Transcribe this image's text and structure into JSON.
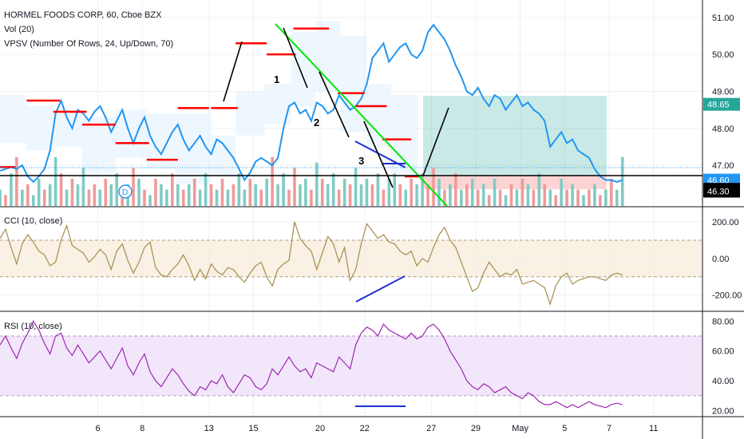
{
  "legend": {
    "symbol_line": "HORMEL FOODS CORP, 60, Cboe BZX",
    "vol_line": "Vol (20)",
    "vpsv_line": "VPSV (Number Of Rows, 24, Up/Down, 70)",
    "cci_line": "CCI (10, close)",
    "rsi_line": "RSI (10, close)"
  },
  "x_axis": {
    "labels": [
      {
        "x": 5,
        "label": "6"
      },
      {
        "x": 7,
        "label": "8"
      },
      {
        "x": 10,
        "label": "13"
      },
      {
        "x": 12,
        "label": "15"
      },
      {
        "x": 15,
        "label": "20"
      },
      {
        "x": 17,
        "label": "22"
      },
      {
        "x": 20,
        "label": "27"
      },
      {
        "x": 22,
        "label": "29"
      },
      {
        "x": 24,
        "label": "May"
      },
      {
        "x": 26,
        "label": "5"
      },
      {
        "x": 28,
        "label": "7"
      },
      {
        "x": 30,
        "label": "11"
      }
    ],
    "range": [
      0.6,
      32.2
    ]
  },
  "price_axis": {
    "ticks": [
      "51.00",
      "50.00",
      "49.00",
      "48.00",
      "47.00"
    ],
    "tick_values": [
      51,
      50,
      49,
      48,
      47
    ],
    "range": [
      45.9,
      51.3
    ],
    "tags": [
      {
        "value": 48.65,
        "label": "48.65",
        "color": "#26a69a"
      },
      {
        "value": 46.6,
        "label": "46.60",
        "color": "#2196f3"
      },
      {
        "value": 46.35,
        "label": "46.35",
        "color": "#000000"
      },
      {
        "value": 46.3,
        "label": "46.30",
        "color": "#000000"
      }
    ]
  },
  "cci_axis": {
    "ticks": [
      "200.00",
      "0.00",
      "-200.00"
    ],
    "tick_values": [
      200,
      0,
      -200
    ],
    "range": [
      -280,
      270
    ],
    "bands": [
      100,
      -100
    ]
  },
  "rsi_axis": {
    "ticks": [
      "80.00",
      "60.00",
      "40.00",
      "20.00"
    ],
    "tick_values": [
      80,
      60,
      40,
      20
    ],
    "range": [
      17,
      85
    ],
    "bands": [
      70,
      30
    ]
  },
  "waves": [
    "1",
    "2",
    "3"
  ],
  "colors": {
    "price": "#2196f3",
    "cci": "#a88c4a",
    "rsi": "#9c27b0",
    "up_vol": "#80cbc4",
    "down_vol": "#ef9a9a",
    "trend": "#00e600",
    "channel": "#1e2fd6",
    "poc": "#ff0000"
  },
  "chart_data": [
    {
      "type": "line",
      "title": "HORMEL FOODS CORP, 60, Cboe BZX",
      "series": [
        {
          "values_x_start": 0.6,
          "values_x_step": 0.25,
          "values": [
            46.85,
            46.9,
            46.95,
            46.9,
            47.0,
            46.7,
            46.55,
            46.7,
            46.9,
            47.4,
            48.4,
            48.75,
            48.3,
            48.0,
            48.5,
            48.4,
            48.2,
            48.45,
            48.6,
            48.3,
            47.9,
            48.2,
            48.5,
            48.0,
            47.6,
            48.0,
            48.3,
            47.8,
            47.5,
            47.3,
            47.6,
            47.9,
            48.1,
            47.7,
            47.4,
            47.6,
            47.8,
            47.5,
            47.3,
            47.7,
            47.6,
            47.4,
            47.2,
            46.9,
            46.6,
            46.8,
            47.1,
            47.2,
            47.1,
            47.0,
            47.2,
            48.0,
            48.6,
            48.7,
            48.4,
            48.5,
            48.2,
            48.7,
            48.6,
            48.4,
            48.5,
            48.9,
            48.7,
            48.5,
            48.6,
            48.8,
            49.2,
            49.9,
            50.1,
            50.3,
            49.8,
            50.0,
            50.2,
            50.3,
            50.0,
            49.9,
            50.1,
            50.6,
            50.8,
            50.6,
            50.4,
            50.1,
            49.7,
            49.4,
            49.0,
            48.9,
            49.1,
            48.8,
            48.6,
            48.9,
            48.8,
            48.5,
            48.7,
            48.9,
            48.6,
            48.7,
            48.5,
            48.4,
            48.2,
            47.5,
            47.7,
            47.9,
            47.6,
            47.7,
            47.4,
            47.3,
            47.2,
            46.9,
            46.7,
            46.6,
            46.6,
            46.55,
            46.6
          ]
        }
      ]
    },
    {
      "type": "bar",
      "title": "Vol (20)",
      "values_x_start": 0.6,
      "values_x_step": 0.25,
      "values": [
        0.3,
        0.2,
        0.6,
        0.9,
        0.3,
        0.4,
        0.2,
        0.5,
        0.3,
        0.4,
        0.9,
        0.6,
        0.3,
        0.5,
        0.4,
        0.7,
        0.3,
        0.4,
        0.3,
        0.5,
        0.4,
        0.6,
        0.3,
        0.4,
        0.7,
        0.5,
        0.3,
        0.2,
        0.5,
        0.4,
        0.3,
        0.6,
        0.4,
        0.3,
        0.4,
        0.5,
        0.3,
        0.6,
        0.4,
        0.3,
        0.5,
        0.3,
        0.4,
        0.6,
        0.3,
        0.5,
        0.4,
        0.3,
        0.5,
        0.9,
        0.4,
        0.6,
        0.3,
        0.7,
        0.4,
        0.5,
        0.3,
        0.8,
        0.5,
        0.4,
        0.6,
        0.3,
        0.5,
        0.4,
        0.7,
        0.4,
        0.5,
        0.4,
        0.6,
        0.3,
        0.5,
        0.6,
        0.4,
        0.3,
        0.5,
        0.4,
        0.6,
        0.4,
        0.7,
        0.5,
        0.3,
        0.4,
        0.6,
        0.3,
        0.4,
        0.5,
        0.3,
        0.4,
        0.2,
        0.5,
        0.3,
        0.2,
        0.4,
        0.3,
        0.5,
        0.4,
        0.3,
        0.6,
        0.4,
        0.3,
        0.2,
        0.5,
        0.3,
        0.4,
        0.3,
        0.2,
        0.3,
        0.4,
        0.2,
        0.3,
        0.5,
        0.3,
        0.9
      ],
      "up": [
        1,
        0,
        1,
        0,
        1,
        0,
        1,
        1,
        0,
        1,
        1,
        0,
        1,
        0,
        1,
        1,
        0,
        0,
        1,
        0,
        1,
        1,
        0,
        1,
        0,
        1,
        0,
        1,
        0,
        1,
        1,
        0,
        1,
        0,
        1,
        0,
        1,
        1,
        0,
        1,
        0,
        1,
        0,
        1,
        1,
        0,
        1,
        0,
        1,
        0,
        1,
        1,
        0,
        0,
        1,
        1,
        0,
        1,
        0,
        1,
        1,
        0,
        1,
        0,
        1,
        1,
        1,
        0,
        1,
        0,
        1,
        1,
        0,
        1,
        0,
        1,
        1,
        0,
        0,
        1,
        0,
        1,
        0,
        1,
        0,
        1,
        0,
        1,
        0,
        1,
        0,
        1,
        0,
        1,
        0,
        1,
        0,
        1,
        0,
        1,
        0,
        1,
        0,
        1,
        0,
        1,
        0,
        1,
        0,
        1,
        0,
        1,
        1
      ]
    },
    {
      "type": "line",
      "title": "CCI (10, close)",
      "series": [
        {
          "values_x_start": 0.6,
          "values_x_step": 0.25,
          "values": [
            110,
            160,
            60,
            -30,
            80,
            130,
            90,
            40,
            20,
            -40,
            -20,
            100,
            180,
            70,
            50,
            30,
            -20,
            10,
            50,
            20,
            -60,
            40,
            80,
            -10,
            -80,
            -20,
            60,
            90,
            -50,
            -90,
            -100,
            -60,
            -30,
            20,
            -40,
            -120,
            -60,
            -110,
            -30,
            -70,
            -90,
            -50,
            -60,
            -100,
            -130,
            -80,
            -40,
            -20,
            -100,
            -150,
            -60,
            -30,
            -10,
            200,
            110,
            70,
            40,
            -60,
            30,
            120,
            80,
            -20,
            60,
            -120,
            -60,
            80,
            190,
            150,
            110,
            130,
            90,
            80,
            40,
            20,
            40,
            -40,
            0,
            -20,
            60,
            130,
            170,
            100,
            60,
            -20,
            -100,
            -180,
            -160,
            -80,
            -20,
            -60,
            -100,
            -80,
            -90,
            -60,
            -140,
            -130,
            -120,
            -140,
            -160,
            -250,
            -150,
            -100,
            -80,
            -140,
            -120,
            -110,
            -100,
            -100,
            -110,
            -120,
            -90,
            -80,
            -90
          ]
        }
      ]
    },
    {
      "type": "line",
      "title": "RSI (10, close)",
      "series": [
        {
          "values_x_start": 0.6,
          "values_x_step": 0.25,
          "values": [
            64,
            70,
            62,
            55,
            65,
            72,
            80,
            74,
            65,
            58,
            70,
            72,
            62,
            57,
            64,
            58,
            52,
            56,
            60,
            54,
            48,
            55,
            62,
            50,
            44,
            52,
            58,
            46,
            40,
            36,
            42,
            48,
            44,
            38,
            33,
            30,
            36,
            34,
            40,
            38,
            44,
            36,
            32,
            38,
            44,
            42,
            36,
            34,
            38,
            48,
            44,
            50,
            56,
            50,
            46,
            48,
            42,
            52,
            50,
            48,
            46,
            56,
            52,
            48,
            64,
            72,
            76,
            74,
            70,
            78,
            74,
            72,
            70,
            68,
            72,
            68,
            70,
            76,
            78,
            74,
            68,
            60,
            54,
            48,
            40,
            36,
            34,
            38,
            36,
            32,
            34,
            36,
            32,
            30,
            28,
            32,
            30,
            26,
            24,
            24,
            26,
            24,
            22,
            24,
            22,
            24,
            26,
            24,
            23,
            22,
            24,
            25,
            24
          ]
        }
      ]
    }
  ]
}
